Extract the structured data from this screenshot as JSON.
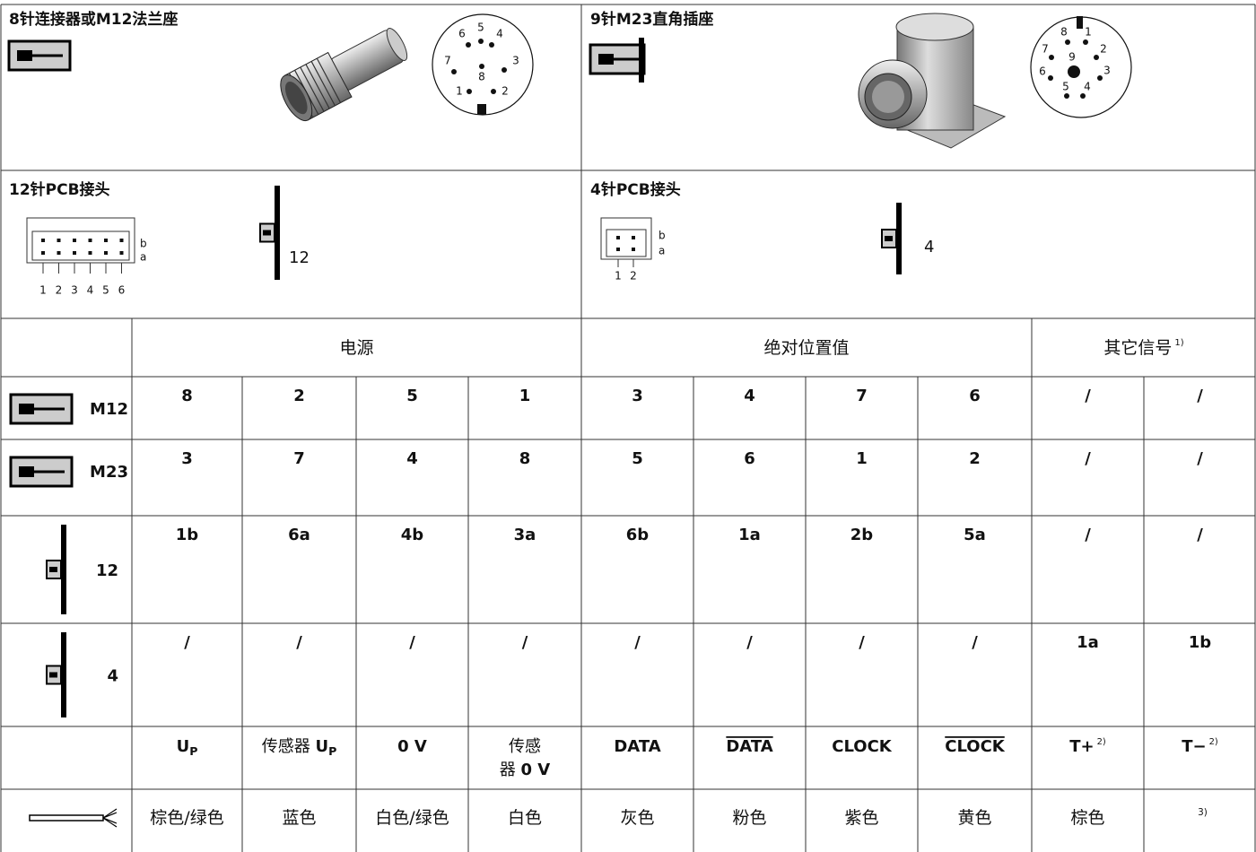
{
  "connectors": [
    {
      "title": "8针连接器或M12法兰座",
      "pins": [
        "1",
        "2",
        "3",
        "4",
        "5",
        "6",
        "7",
        "8"
      ]
    },
    {
      "title": "9针M23直角插座",
      "pins": [
        "1",
        "2",
        "3",
        "4",
        "5",
        "6",
        "7",
        "8",
        "9"
      ]
    },
    {
      "title": "12针PCB接头",
      "label": "12",
      "rows": [
        "b",
        "a"
      ],
      "pins": [
        "1",
        "2",
        "3",
        "4",
        "5",
        "6"
      ]
    },
    {
      "title": "4针PCB接头",
      "label": "4",
      "rows": [
        "b",
        "a"
      ],
      "pins": [
        "1",
        "2"
      ]
    }
  ],
  "table": {
    "groups": [
      [
        {
          "text": "电源",
          "style": "normal"
        }
      ],
      [
        {
          "text": "绝对位置值",
          "style": "normal"
        }
      ],
      [
        {
          "text": "其它信号",
          "style": "normal"
        },
        {
          "text": "1)",
          "style": "sup"
        }
      ]
    ],
    "rows": [
      {
        "label": "M12",
        "icon": "cable",
        "cells": [
          "8",
          "2",
          "5",
          "1",
          "3",
          "4",
          "7",
          "6",
          "/",
          "/"
        ]
      },
      {
        "label": "M23",
        "icon": "cable",
        "cells": [
          "3",
          "7",
          "4",
          "8",
          "5",
          "6",
          "1",
          "2",
          "/",
          "/"
        ]
      },
      {
        "label": "12",
        "icon": "pcb",
        "cells": [
          "1b",
          "6a",
          "4b",
          "3a",
          "6b",
          "1a",
          "2b",
          "5a",
          "/",
          "/"
        ]
      },
      {
        "label": "4",
        "icon": "pcb",
        "cells": [
          "/",
          "/",
          "/",
          "/",
          "/",
          "/",
          "/",
          "/",
          "1a",
          "1b"
        ]
      }
    ],
    "signals": [
      [
        [
          {
            "text": "U",
            "style": "bold"
          },
          {
            "text": "P",
            "style": "sub"
          }
        ]
      ],
      [
        [
          {
            "text": "传感器 ",
            "style": "normal"
          },
          {
            "text": "U",
            "style": "bold"
          },
          {
            "text": "P",
            "style": "sub"
          }
        ]
      ],
      [
        [
          {
            "text": "0 V",
            "style": "bold"
          }
        ]
      ],
      [
        [
          {
            "text": "传感",
            "style": "normal"
          }
        ],
        [
          {
            "text": "器 ",
            "style": "normal"
          },
          {
            "text": "0 V",
            "style": "bold"
          }
        ]
      ],
      [
        [
          {
            "text": "DATA",
            "style": "bold"
          }
        ]
      ],
      [
        [
          {
            "text": "DATA",
            "style": "overline"
          }
        ]
      ],
      [
        [
          {
            "text": "CLOCK",
            "style": "bold"
          }
        ]
      ],
      [
        [
          {
            "text": "CLOCK",
            "style": "overline"
          }
        ]
      ],
      [
        [
          {
            "text": "T+",
            "style": "bold"
          },
          {
            "text": "2)",
            "style": "sup"
          }
        ]
      ],
      [
        [
          {
            "text": "T−",
            "style": "bold"
          },
          {
            "text": "2)",
            "style": "sup"
          }
        ]
      ]
    ],
    "wires": [
      [
        [
          {
            "text": "棕色/绿色",
            "style": "normal"
          }
        ]
      ],
      [
        [
          {
            "text": "蓝色",
            "style": "normal"
          }
        ]
      ],
      [
        [
          {
            "text": "白色/绿色",
            "style": "normal"
          }
        ]
      ],
      [
        [
          {
            "text": "白色",
            "style": "normal"
          }
        ]
      ],
      [
        [
          {
            "text": "灰色",
            "style": "normal"
          }
        ]
      ],
      [
        [
          {
            "text": "粉色",
            "style": "normal"
          }
        ]
      ],
      [
        [
          {
            "text": "紫色",
            "style": "normal"
          }
        ]
      ],
      [
        [
          {
            "text": "黄色",
            "style": "normal"
          }
        ]
      ],
      [
        [
          {
            "text": "棕色",
            "style": "normal"
          }
        ]
      ],
      [
        [
          {
            "text": "3)",
            "style": "sup"
          }
        ]
      ]
    ]
  }
}
